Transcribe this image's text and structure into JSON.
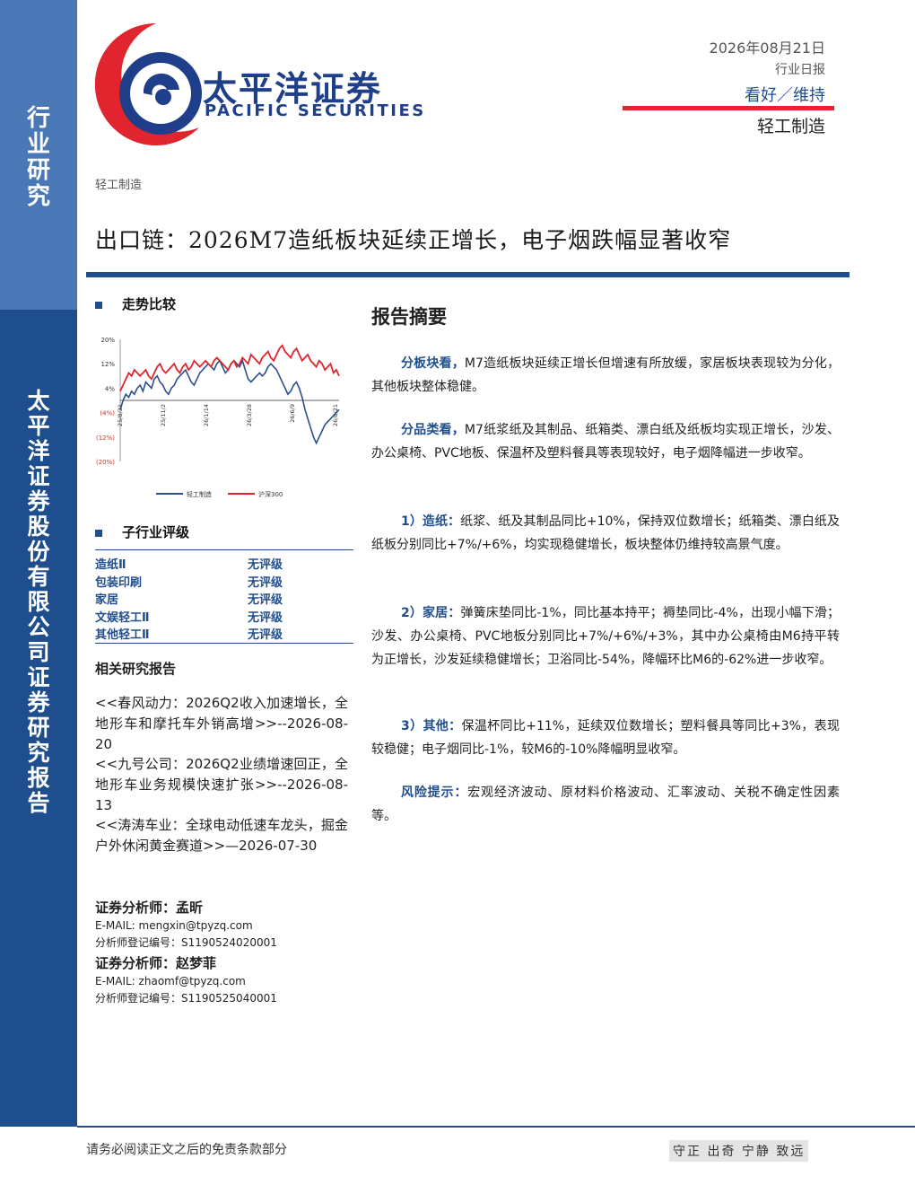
{
  "sidebar": {
    "top_text": "行业研究",
    "bottom_text": "太平洋证券股份有限公司证券研究报告"
  },
  "logo": {
    "cn": "太平洋证券",
    "en": "PACIFIC SECURITIES"
  },
  "header": {
    "date": "2026年08月21日",
    "report_type": "行业日报",
    "rating": "看好／维持",
    "sector": "轻工制造"
  },
  "sector_small": "轻工制造",
  "title": "出口链：2026M7造纸板块延续正增长，电子烟跌幅显著收窄",
  "trend": {
    "heading": "走势比较"
  },
  "chart_data": {
    "type": "line",
    "x_ticks": [
      "25/8/21",
      "25/11/2",
      "26/1/14",
      "26/3/28",
      "26/6/9",
      "26/8/21"
    ],
    "y_ticks": [
      "20%",
      "12%",
      "4%",
      "(4%)",
      "(12%)",
      "(20%)"
    ],
    "ylim": [
      -20,
      20
    ],
    "legend_position": "bottom",
    "series": [
      {
        "name": "轻工制造",
        "color": "#2b4f8f",
        "values": [
          -3,
          0,
          2,
          1,
          3,
          2,
          4,
          5,
          3,
          6,
          5,
          4,
          7,
          8,
          6,
          5,
          3,
          2,
          4,
          5,
          7,
          8,
          9,
          10,
          8,
          6,
          5,
          7,
          9,
          10,
          11,
          12,
          11,
          10,
          12,
          13,
          11,
          9,
          10,
          12,
          13,
          12,
          11,
          13,
          10,
          7,
          6,
          7,
          8,
          9,
          8,
          9,
          11,
          12,
          11,
          10,
          8,
          6,
          4,
          2,
          3,
          5,
          6,
          4,
          1,
          -3,
          -6,
          -9,
          -12,
          -14,
          -12,
          -10,
          -8,
          -7,
          -6,
          -5,
          -4,
          -3
        ]
      },
      {
        "name": "沪深300",
        "color": "#e0252f",
        "values": [
          3,
          5,
          7,
          9,
          8,
          10,
          9,
          8,
          9,
          10,
          8,
          7,
          9,
          11,
          12,
          10,
          9,
          10,
          11,
          12,
          10,
          9,
          11,
          12,
          10,
          11,
          13,
          12,
          11,
          12,
          13,
          12,
          11,
          13,
          14,
          13,
          12,
          11,
          10,
          12,
          13,
          11,
          12,
          14,
          13,
          12,
          15,
          14,
          13,
          12,
          14,
          15,
          16,
          14,
          13,
          15,
          17,
          18,
          16,
          15,
          14,
          16,
          17,
          15,
          13,
          14,
          15,
          13,
          12,
          11,
          13,
          12,
          10,
          11,
          12,
          9,
          10,
          8
        ]
      }
    ]
  },
  "sub_rating": {
    "heading": "子行业评级",
    "rows": [
      {
        "name": "造纸Ⅱ",
        "rating": "无评级"
      },
      {
        "name": "包装印刷",
        "rating": "无评级"
      },
      {
        "name": "家居",
        "rating": "无评级"
      },
      {
        "name": "文娱轻工Ⅱ",
        "rating": "无评级"
      },
      {
        "name": "其他轻工Ⅱ",
        "rating": "无评级"
      }
    ]
  },
  "related": {
    "heading": "相关研究报告",
    "items": [
      "<<春风动力：2026Q2收入加速增长，全地形车和摩托车外销高增>>--2026-08-20",
      "<<九号公司：2026Q2业绩增速回正，全地形车业务规模快速扩张>>--2026-08-13",
      "<<涛涛车业：全球电动低速车龙头，掘金户外休闲黄金赛道>>—2026-07-30"
    ]
  },
  "analysts": [
    {
      "label": "证券分析师：孟昕",
      "email": "E-MAIL: mengxin@tpyzq.com",
      "reg": "分析师登记编号：S1190524020001"
    },
    {
      "label": "证券分析师：赵梦菲",
      "email": "E-MAIL: zhaomf@tpyzq.com",
      "reg": "分析师登记编号：S1190525040001"
    }
  ],
  "summary": {
    "heading": "报告摘要",
    "paras": [
      {
        "hl": "分板块看，",
        "text": "M7造纸板块延续正增长但增速有所放缓，家居板块表现较为分化，其他板块整体稳健。"
      },
      {
        "hl": "分品类看，",
        "text": "M7纸浆纸及其制品、纸箱类、漂白纸及纸板均实现正增长，沙发、办公桌椅、PVC地板、保温杯及塑料餐具等表现较好，电子烟降幅进一步收窄。"
      },
      {
        "hl": "1）造纸：",
        "text": "纸浆、纸及其制品同比+10%，保持双位数增长；纸箱类、漂白纸及纸板分别同比+7%/+6%，均实现稳健增长，板块整体仍维持较高景气度。"
      },
      {
        "hl": "2）家居：",
        "text": "弹簧床垫同比-1%，同比基本持平；褥垫同比-4%，出现小幅下滑；沙发、办公桌椅、PVC地板分别同比+7%/+6%/+3%，其中办公桌椅由M6持平转为正增长，沙发延续稳健增长；卫浴同比-54%，降幅环比M6的-62%进一步收窄。"
      },
      {
        "hl": "3）其他：",
        "text": "保温杯同比+11%，延续双位数增长；塑料餐具等同比+3%，表现较稳健；电子烟同比-1%，较M6的-10%降幅明显收窄。"
      },
      {
        "hl": "风险提示：",
        "text": "宏观经济波动、原材料价格波动、汇率波动、关税不确定性因素等。"
      }
    ]
  },
  "footer": {
    "left": "请务必阅读正文之后的免责条款部分",
    "right": "守正 出奇 宁静 致远"
  }
}
